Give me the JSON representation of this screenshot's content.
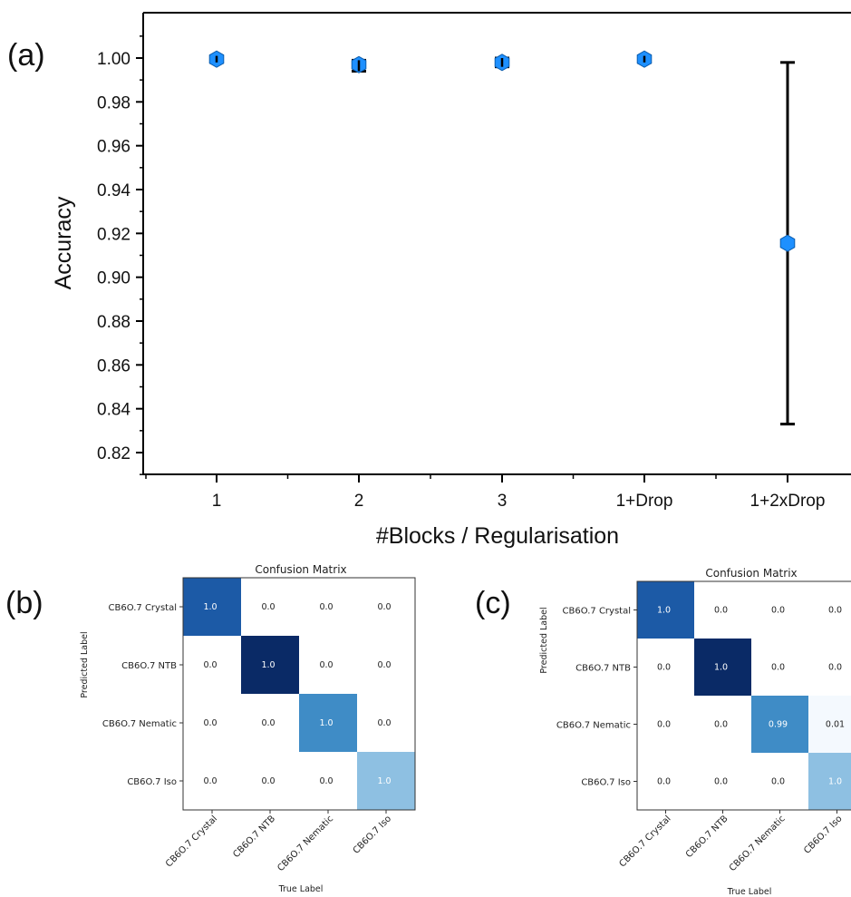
{
  "panel_labels": {
    "a": "(a)",
    "b": "(b)",
    "c": "(c)"
  },
  "chart_data": [
    {
      "type": "scatter",
      "title": "",
      "xlabel": "#Blocks / Regularisation",
      "ylabel": "Accuracy",
      "categories": [
        "1",
        "2",
        "3",
        "1+Drop",
        "1+2xDrop"
      ],
      "values": [
        0.9995,
        0.997,
        0.998,
        0.9995,
        0.9155
      ],
      "error_low": [
        0.998,
        0.994,
        0.996,
        0.998,
        0.833
      ],
      "error_high": [
        1.001,
        0.999,
        1.0,
        1.001,
        0.998
      ],
      "yticks": [
        "0.82",
        "0.84",
        "0.86",
        "0.88",
        "0.90",
        "0.92",
        "0.94",
        "0.96",
        "0.98",
        "1.00"
      ],
      "ylim": [
        0.81,
        1.02
      ],
      "grid": false,
      "marker_color": "#1e90ff"
    },
    {
      "type": "heatmap",
      "title": "Confusion Matrix",
      "xlabel": "True Label",
      "ylabel": "Predicted Label",
      "rows": [
        "CB6O.7 Crystal",
        "CB6O.7 NTB",
        "CB6O.7 Nematic",
        "CB6O.7 Iso"
      ],
      "cols": [
        "CB6O.7 Crystal",
        "CB6O.7 NTB",
        "CB6O.7 Nematic",
        "CB6O.7 Iso"
      ],
      "values": [
        [
          1.0,
          0.0,
          0.0,
          0.0
        ],
        [
          0.0,
          1.0,
          0.0,
          0.0
        ],
        [
          0.0,
          0.0,
          1.0,
          0.0
        ],
        [
          0.0,
          0.0,
          0.0,
          1.0
        ]
      ],
      "cell_labels": [
        [
          "1.0",
          "0.0",
          "0.0",
          "0.0"
        ],
        [
          "0.0",
          "1.0",
          "0.0",
          "0.0"
        ],
        [
          "0.0",
          "0.0",
          "1.0",
          "0.0"
        ],
        [
          "0.0",
          "0.0",
          "0.0",
          "1.0"
        ]
      ],
      "diagonal_colors": [
        "#1c5aa6",
        "#0a2a66",
        "#3f8cc6",
        "#8ec0e2"
      ],
      "colormap": "Blues"
    },
    {
      "type": "heatmap",
      "title": "Confusion Matrix",
      "xlabel": "True Label",
      "ylabel": "Predicted Label",
      "rows": [
        "CB6O.7 Crystal",
        "CB6O.7 NTB",
        "CB6O.7 Nematic",
        "CB6O.7 Iso"
      ],
      "cols": [
        "CB6O.7 Crystal",
        "CB6O.7 NTB",
        "CB6O.7 Nematic",
        "CB6O.7 Iso"
      ],
      "values": [
        [
          1.0,
          0.0,
          0.0,
          0.0
        ],
        [
          0.0,
          1.0,
          0.0,
          0.0
        ],
        [
          0.0,
          0.0,
          0.99,
          0.01
        ],
        [
          0.0,
          0.0,
          0.0,
          1.0
        ]
      ],
      "cell_labels": [
        [
          "1.0",
          "0.0",
          "0.0",
          "0.0"
        ],
        [
          "0.0",
          "1.0",
          "0.0",
          "0.0"
        ],
        [
          "0.0",
          "0.0",
          "0.99",
          "0.01"
        ],
        [
          "0.0",
          "0.0",
          "0.0",
          "1.0"
        ]
      ],
      "diagonal_colors": [
        "#1c5aa6",
        "#0a2a66",
        "#3f8cc6",
        "#8ec0e2"
      ],
      "colormap": "Blues"
    }
  ]
}
